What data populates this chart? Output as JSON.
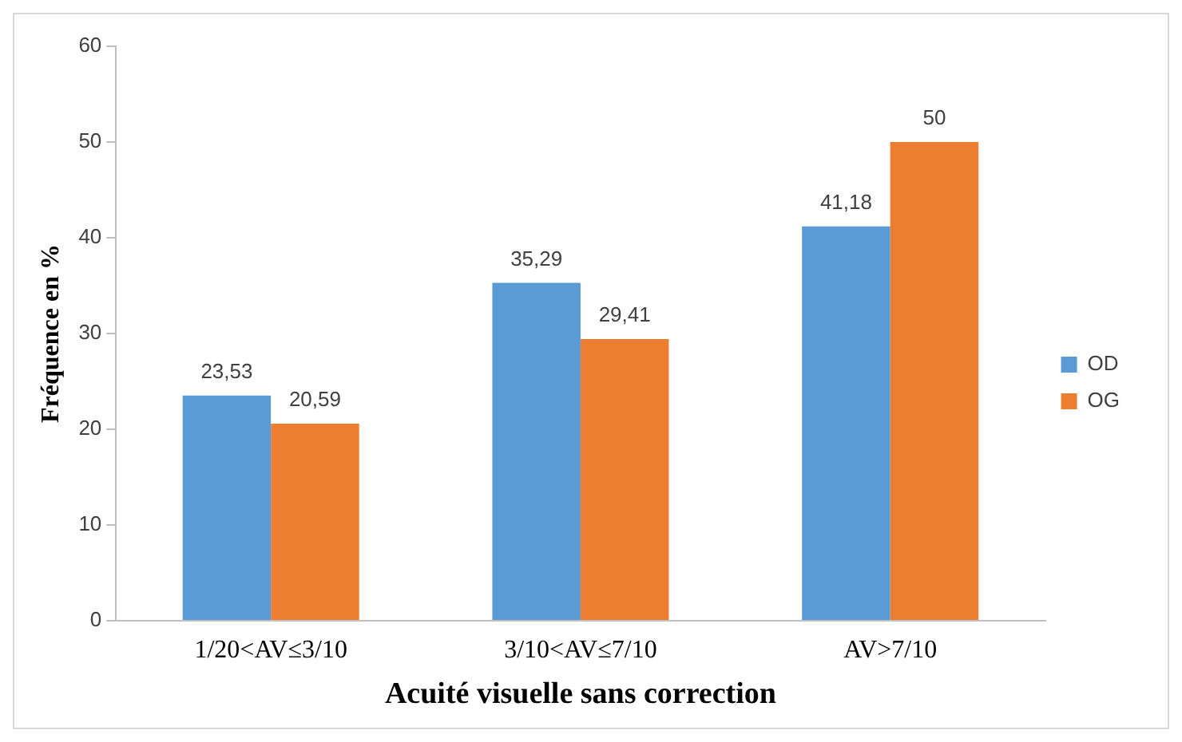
{
  "chart_data": {
    "type": "bar",
    "xlabel": "Acuité visuelle sans correction",
    "ylabel": "Fréquence en %",
    "categories": [
      "1/20<AV≤3/10",
      "3/10<AV≤7/10",
      "AV>7/10"
    ],
    "series": [
      {
        "name": "OD",
        "color": "#5b9bd5",
        "values": [
          23.53,
          35.29,
          41.18
        ],
        "value_labels": [
          "23,53",
          "35,29",
          "41,18"
        ]
      },
      {
        "name": "OG",
        "color": "#ed7d31",
        "values": [
          20.59,
          29.41,
          50
        ],
        "value_labels": [
          "20,59",
          "29,41",
          "50"
        ]
      }
    ],
    "ylim": [
      0,
      60
    ],
    "yticks": [
      0,
      10,
      20,
      30,
      40,
      50,
      60
    ],
    "grid": false,
    "legend": "right"
  }
}
